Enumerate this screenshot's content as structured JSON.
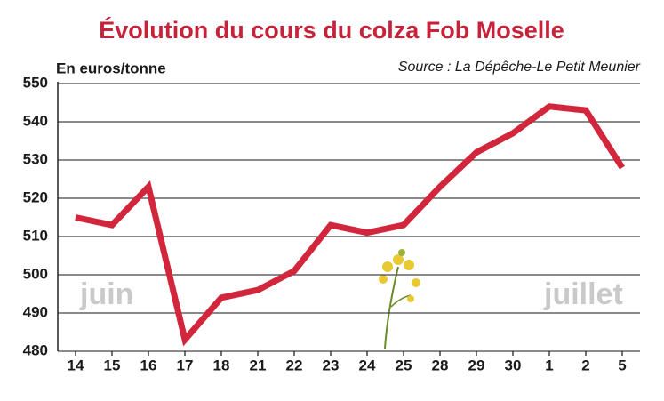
{
  "chart_data": {
    "type": "line",
    "title": "Évolution du cours du colza Fob Moselle",
    "y_label": "En euros/tonne",
    "source": "Source : La Dépêche-Le Petit Meunier",
    "annotations": [
      "juin",
      "juillet"
    ],
    "categories": [
      "14",
      "15",
      "16",
      "17",
      "18",
      "21",
      "22",
      "23",
      "24",
      "25",
      "28",
      "29",
      "30",
      "1",
      "2",
      "5"
    ],
    "values": [
      515,
      513,
      523,
      483,
      494,
      496,
      501,
      513,
      511,
      513,
      523,
      532,
      537,
      544,
      543,
      528
    ],
    "color": "#d1263b",
    "ylim": [
      480,
      550
    ],
    "yticks": [
      480,
      490,
      500,
      510,
      520,
      530,
      540,
      550
    ],
    "grid": true
  }
}
